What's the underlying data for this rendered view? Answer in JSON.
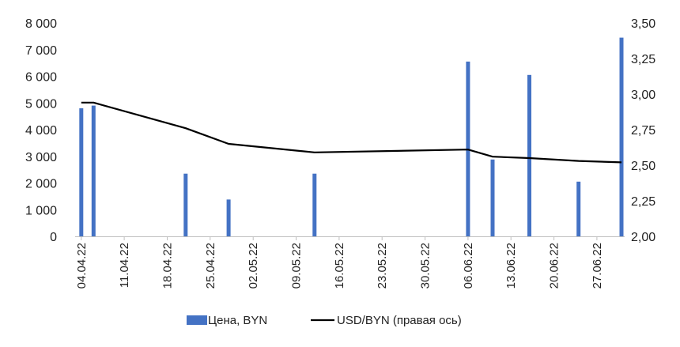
{
  "chart_data": {
    "type": "bar+line",
    "x_tick_labels": [
      "04.04.22",
      "11.04.22",
      "18.04.22",
      "25.04.22",
      "02.05.22",
      "09.05.22",
      "16.05.22",
      "23.05.22",
      "30.05.22",
      "06.06.22",
      "13.06.22",
      "20.06.22",
      "27.06.22"
    ],
    "x_range": [
      "2022-04-03",
      "2022-07-01"
    ],
    "y_left": {
      "min": 0,
      "max": 8000,
      "step": 1000,
      "tick_labels": [
        "0",
        "1 000",
        "2 000",
        "3 000",
        "4 000",
        "5 000",
        "6 000",
        "7 000",
        "8 000"
      ]
    },
    "y_right": {
      "min": 2.0,
      "max": 3.5,
      "step": 0.25,
      "tick_labels": [
        "2,00",
        "2,25",
        "2,50",
        "2,75",
        "3,00",
        "3,25",
        "3,50"
      ]
    },
    "series": [
      {
        "name": "Цена, BYN",
        "type": "bar",
        "axis": "left",
        "color": "#4472C4",
        "points": [
          {
            "date": "2022-04-04",
            "value": 4800
          },
          {
            "date": "2022-04-06",
            "value": 4900
          },
          {
            "date": "2022-04-21",
            "value": 2350
          },
          {
            "date": "2022-04-28",
            "value": 1380
          },
          {
            "date": "2022-05-12",
            "value": 2350
          },
          {
            "date": "2022-06-06",
            "value": 6550
          },
          {
            "date": "2022-06-10",
            "value": 2880
          },
          {
            "date": "2022-06-16",
            "value": 6050
          },
          {
            "date": "2022-06-24",
            "value": 2050
          },
          {
            "date": "2022-07-01",
            "value": 7450
          }
        ]
      },
      {
        "name": "USD/BYN (правая ось)",
        "type": "line",
        "axis": "right",
        "color": "#000000",
        "points": [
          {
            "date": "2022-04-04",
            "value": 2.94
          },
          {
            "date": "2022-04-06",
            "value": 2.94
          },
          {
            "date": "2022-04-21",
            "value": 2.76
          },
          {
            "date": "2022-04-28",
            "value": 2.65
          },
          {
            "date": "2022-05-12",
            "value": 2.59
          },
          {
            "date": "2022-06-06",
            "value": 2.61
          },
          {
            "date": "2022-06-10",
            "value": 2.56
          },
          {
            "date": "2022-06-16",
            "value": 2.55
          },
          {
            "date": "2022-06-24",
            "value": 2.53
          },
          {
            "date": "2022-07-01",
            "value": 2.52
          }
        ]
      }
    ],
    "legend": {
      "position": "bottom"
    },
    "grid": false
  }
}
